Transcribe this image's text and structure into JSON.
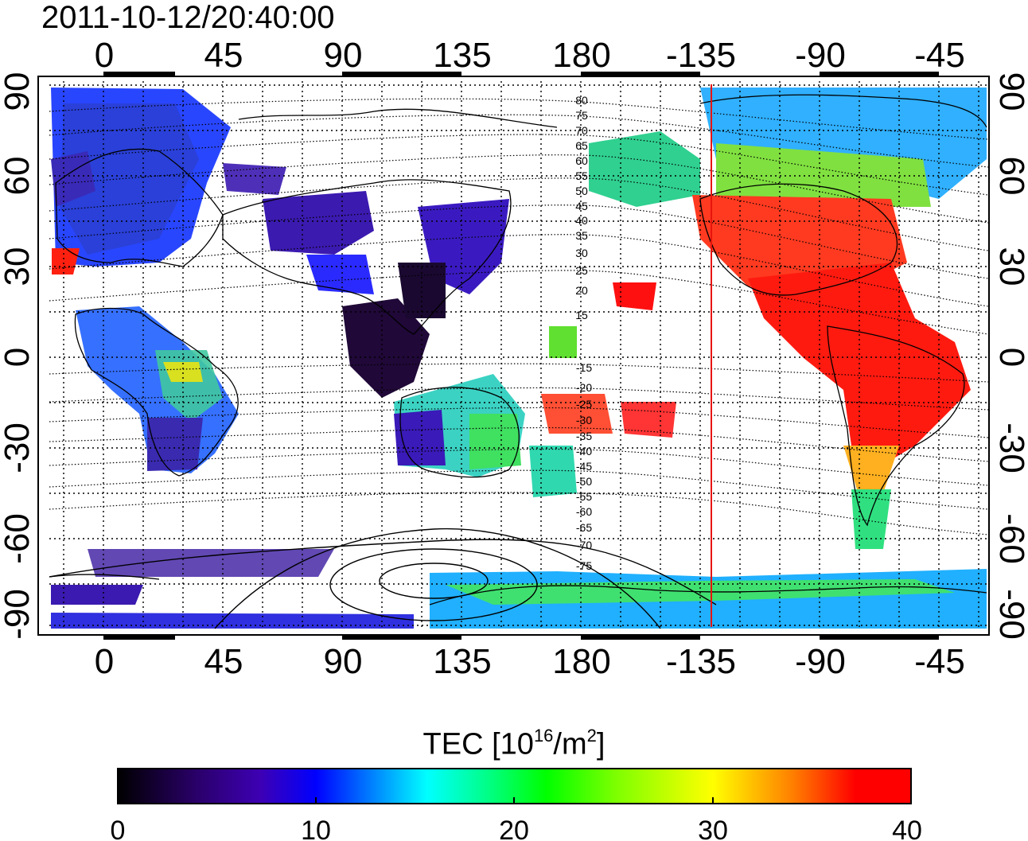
{
  "timestamp": "2011-10-12/20:40:00",
  "map": {
    "top_lon_ticks": [
      "0",
      "45",
      "90",
      "135",
      "180",
      "-135",
      "-90",
      "-45"
    ],
    "bottom_lon_ticks": [
      "0",
      "45",
      "90",
      "135",
      "180",
      "-135",
      "-90",
      "-45"
    ],
    "left_lat_ticks": [
      "90",
      "60",
      "30",
      "0",
      "-30",
      "-60",
      "-90"
    ],
    "right_lat_ticks": [
      "90",
      "60",
      "30",
      "0",
      "-30",
      "-60",
      "-90"
    ],
    "contour_labels": [
      "80",
      "75",
      "70",
      "65",
      "60",
      "55",
      "50",
      "45",
      "40",
      "35",
      "30",
      "25",
      "20",
      "15",
      "-15",
      "-20",
      "-25",
      "-30",
      "-35",
      "-40",
      "-45",
      "-50",
      "-55",
      "-60",
      "-65",
      "-70",
      "-75"
    ],
    "terminator_color": "#e8140c",
    "frame_color": "#000000"
  },
  "colorbar": {
    "title_prefix": "TEC  [10",
    "title_sup1": "16",
    "title_mid": "/m",
    "title_sup2": "2",
    "title_suffix": "]",
    "tick_labels": [
      "0",
      "10",
      "20",
      "30",
      "40"
    ],
    "min": 0,
    "max": 40,
    "colors": [
      "#000000",
      "#2a006a",
      "#3d00b4",
      "#0000ff",
      "#0080ff",
      "#00ffff",
      "#00ff80",
      "#00ff00",
      "#80ff00",
      "#ffff00",
      "#ff8000",
      "#ff0000"
    ]
  }
}
